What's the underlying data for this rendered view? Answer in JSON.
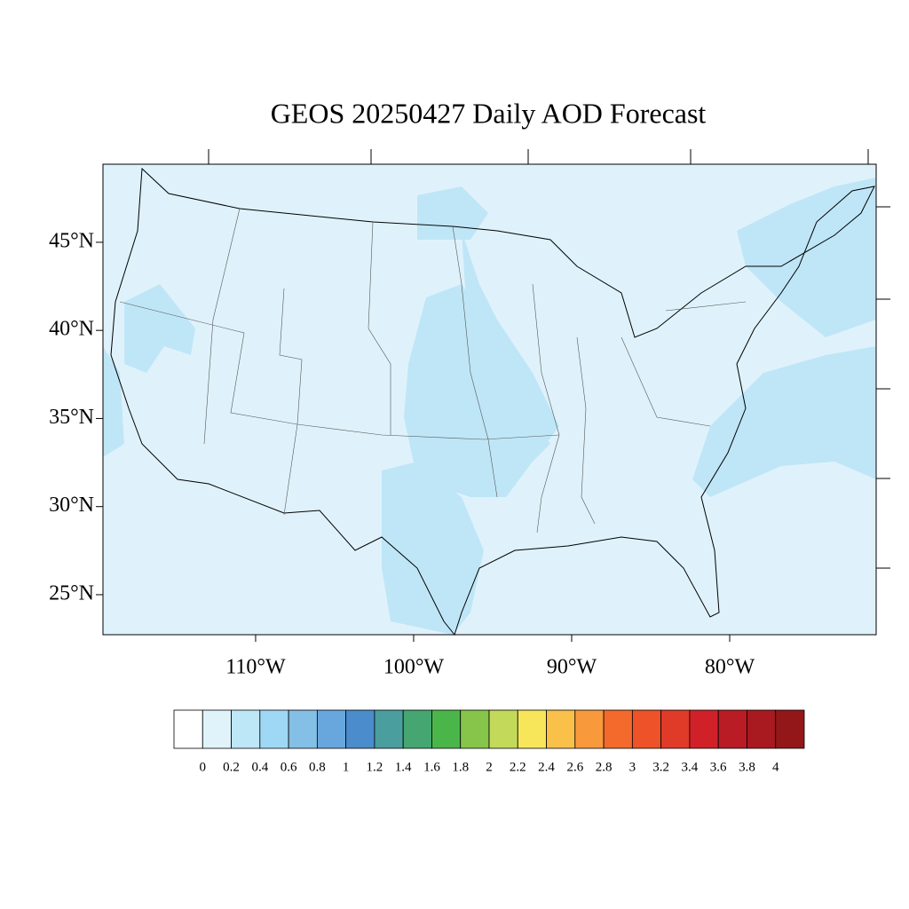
{
  "title": "GEOS 20250427 Daily AOD Forecast",
  "map": {
    "lonlim": [
      -119.66,
      -70.73
    ],
    "latlim": [
      22.73,
      49.43
    ],
    "lon_ticks": [
      {
        "value": -110,
        "label": "110°W"
      },
      {
        "value": -100,
        "label": "100°W"
      },
      {
        "value": -90,
        "label": "90°W"
      },
      {
        "value": -80,
        "label": "80°W"
      }
    ],
    "lat_ticks": [
      {
        "value": 45,
        "label": "45°N"
      },
      {
        "value": 40,
        "label": "40°N"
      },
      {
        "value": 35,
        "label": "35°N"
      },
      {
        "value": 30,
        "label": "30°N"
      },
      {
        "value": 25,
        "label": "25°N"
      }
    ]
  },
  "colorbar": {
    "levels": [
      0,
      0.2,
      0.4,
      0.6,
      0.8,
      1,
      1.2,
      1.4,
      1.6,
      1.8,
      2,
      2.2,
      2.4,
      2.6,
      2.8,
      3,
      3.2,
      3.4,
      3.6,
      3.8,
      4
    ],
    "colors": [
      "#ffffff",
      "#e0f3fb",
      "#bde6f7",
      "#9fd8f4",
      "#84bfe6",
      "#68a7dd",
      "#4a8ccc",
      "#4a9e9e",
      "#45a672",
      "#4ab64a",
      "#86c54a",
      "#c3d95a",
      "#f7e65a",
      "#f9c04a",
      "#f89a3c",
      "#f46a2c",
      "#ed5229",
      "#e03a28",
      "#d12128",
      "#b91c24",
      "#a81a20",
      "#931719"
    ]
  }
}
